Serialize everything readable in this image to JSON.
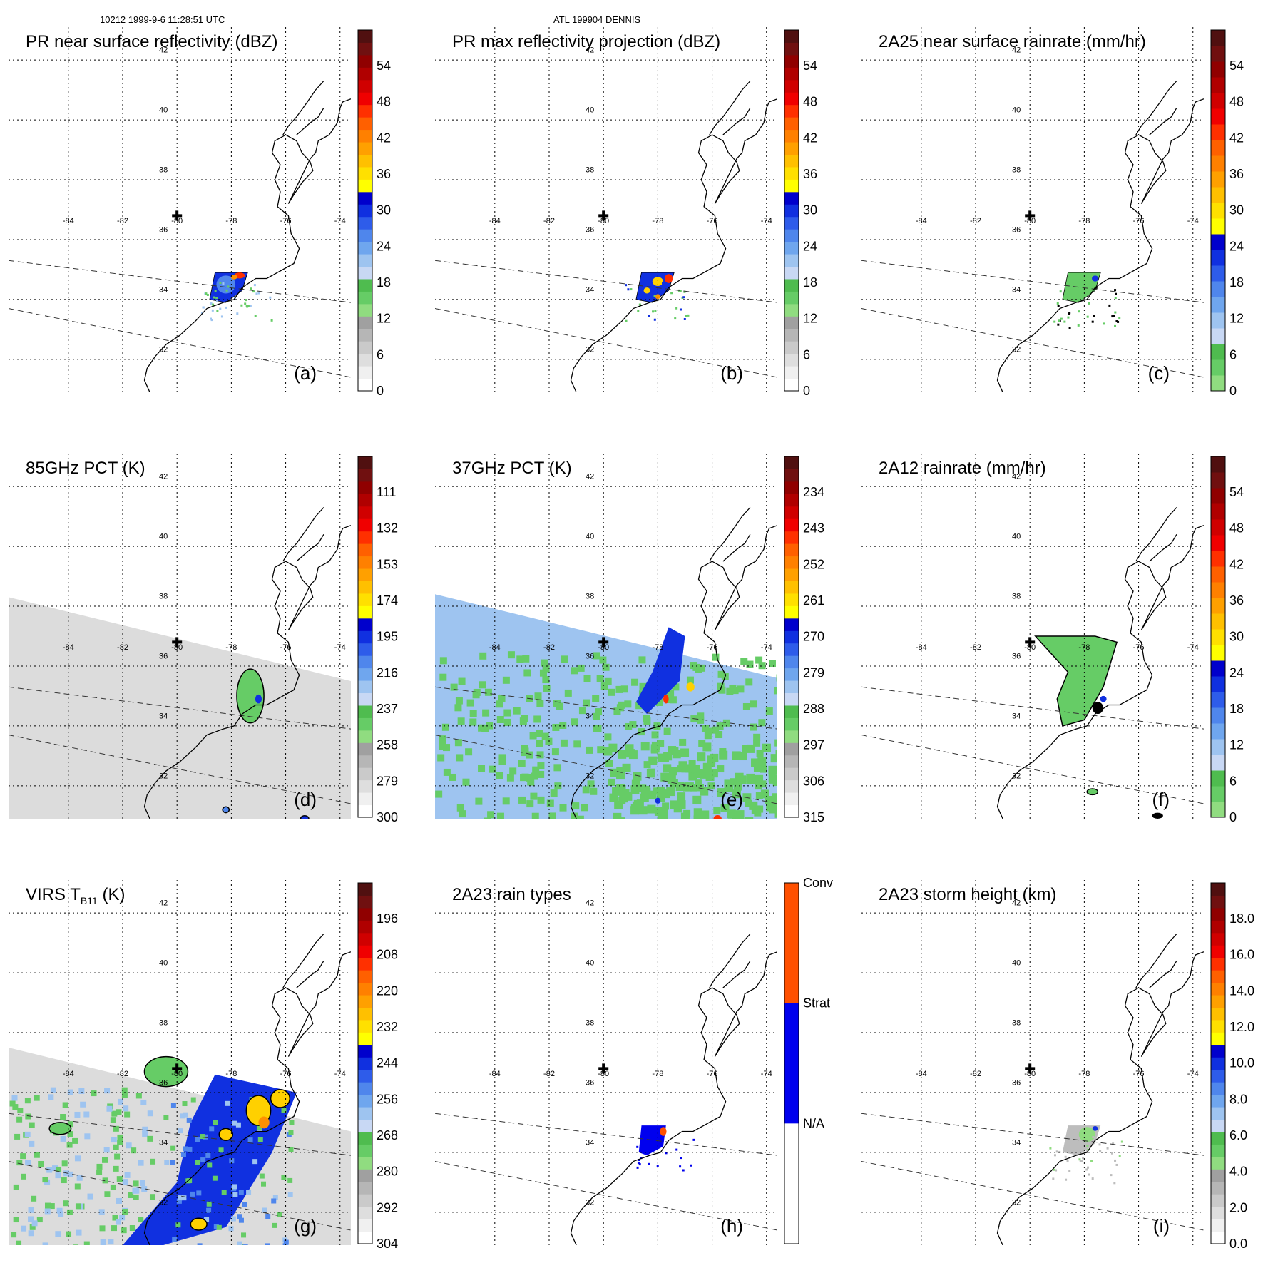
{
  "header": {
    "left": "10212 1999-9-6 11:28:51 UTC",
    "center": "ATL 199904 DENNIS"
  },
  "map": {
    "lon_labels": [
      "-84",
      "-82",
      "-80",
      "-78",
      "-76",
      "-74"
    ],
    "lat_labels": [
      "42",
      "40",
      "38",
      "36",
      "34",
      "32"
    ],
    "lon_values": [
      -84,
      -82,
      -80,
      -78,
      -76,
      -74
    ],
    "lat_values": [
      42,
      40,
      38,
      36,
      34,
      32
    ],
    "extent": {
      "lon_min": -86.2,
      "lon_max": -73.6,
      "lat_min": 30.9,
      "lat_max": 43.1
    },
    "center_marker": {
      "lon": -80.0,
      "lat": 36.8
    }
  },
  "panels": [
    {
      "id": "a",
      "label": "(a)",
      "title": "PR near surface reflectivity (dBZ)",
      "field": "pr_near",
      "ticks": [
        "54",
        "48",
        "42",
        "36",
        "30",
        "24",
        "18",
        "12",
        "6",
        "0"
      ],
      "bar": "std"
    },
    {
      "id": "b",
      "label": "(b)",
      "title": "PR max reflectivity projection (dBZ)",
      "field": "pr_max",
      "ticks": [
        "54",
        "48",
        "42",
        "36",
        "30",
        "24",
        "18",
        "12",
        "6",
        "0"
      ],
      "bar": "std"
    },
    {
      "id": "c",
      "label": "(c)",
      "title": "2A25 near surface rainrate (mm/hr)",
      "field": "rain25",
      "ticks": [
        "54",
        "48",
        "42",
        "36",
        "30",
        "24",
        "18",
        "12",
        "6",
        "0"
      ],
      "bar": "rain"
    },
    {
      "id": "d",
      "label": "(d)",
      "title": "85GHz PCT (K)",
      "field": "pct85",
      "ticks": [
        "111",
        "132",
        "153",
        "174",
        "195",
        "216",
        "237",
        "258",
        "279",
        "300"
      ],
      "bar": "std"
    },
    {
      "id": "e",
      "label": "(e)",
      "title": "37GHz PCT (K)",
      "field": "pct37",
      "ticks": [
        "234",
        "243",
        "252",
        "261",
        "270",
        "279",
        "288",
        "297",
        "306",
        "315"
      ],
      "bar": "std"
    },
    {
      "id": "f",
      "label": "(f)",
      "title": "2A12 rainrate (mm/hr)",
      "field": "rain12",
      "ticks": [
        "54",
        "48",
        "42",
        "36",
        "30",
        "24",
        "18",
        "12",
        "6",
        "0"
      ],
      "bar": "rain"
    },
    {
      "id": "g",
      "label": "(g)",
      "title": "VIRS T",
      "title_sub": "B11",
      "title_after": " (K)",
      "field": "virs",
      "ticks": [
        "196",
        "208",
        "220",
        "232",
        "244",
        "256",
        "268",
        "280",
        "292",
        "304"
      ],
      "bar": "std"
    },
    {
      "id": "h",
      "label": "(h)",
      "title": "2A23 rain types",
      "field": "raintype",
      "ticks": [
        "Conv",
        "Strat",
        "N/A"
      ],
      "bar": "types"
    },
    {
      "id": "i",
      "label": "(i)",
      "title": "2A23 storm height (km)",
      "field": "height",
      "ticks": [
        "18.0",
        "16.0",
        "14.0",
        "12.0",
        "10.0",
        "8.0",
        "6.0",
        "4.0",
        "2.0",
        "0.0"
      ],
      "bar": "std"
    }
  ],
  "colors": {
    "bar_std": [
      "#ffffff",
      "#f0f0f0",
      "#dedede",
      "#cacaca",
      "#b6b6b6",
      "#a0a0a0",
      "#90dc80",
      "#66cc66",
      "#4fbc4f",
      "#c8d8f4",
      "#9ec4f0",
      "#6fa6ee",
      "#4f86ec",
      "#2e5cea",
      "#1030e0",
      "#0000cc",
      "#ffff00",
      "#ffe000",
      "#ffc000",
      "#ffa000",
      "#ff8000",
      "#ff6000",
      "#ff3000",
      "#f00000",
      "#d00000",
      "#b00000",
      "#900000",
      "#701010",
      "#501010"
    ],
    "bar_rain": [
      "#90dc80",
      "#66cc66",
      "#4fbc4f",
      "#c8d8f4",
      "#9ec4f0",
      "#6fa6ee",
      "#4f86ec",
      "#2e5cea",
      "#1030e0",
      "#0000cc",
      "#ffff00",
      "#ffe000",
      "#ffc000",
      "#ffa000",
      "#ff8000",
      "#ff6000",
      "#ff3000",
      "#f00000",
      "#d00000",
      "#b00000",
      "#900000",
      "#701010",
      "#501010"
    ],
    "bar_types": [
      "#ffffff",
      "#0000ee",
      "#ff5000"
    ],
    "swath_gray": "#dcdcdc",
    "swath_blue": "#9ec4f0",
    "rain_green": "#66cc66",
    "rain_blue": "#1030e0",
    "rain_red": "#ff3000",
    "rain_yellow": "#ffd000",
    "rain_orange": "#ff9000"
  }
}
